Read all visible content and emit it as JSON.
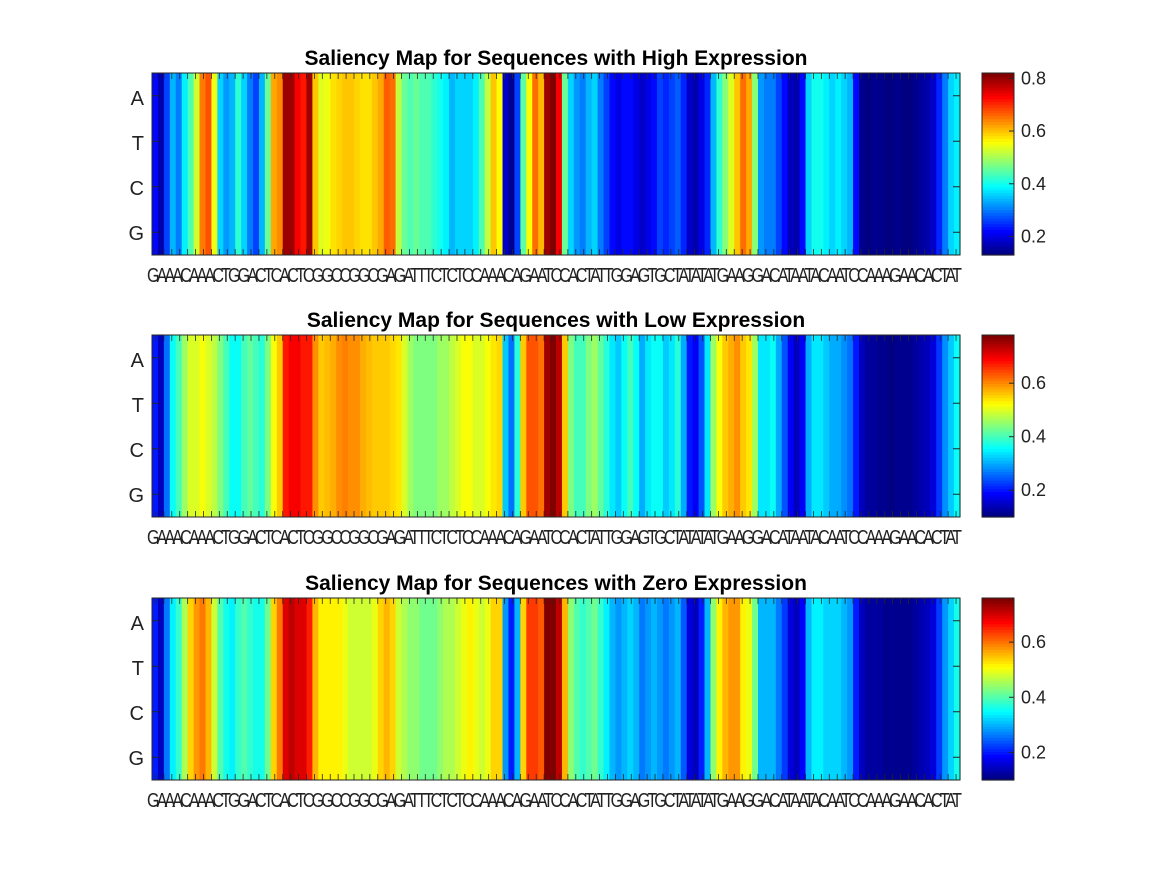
{
  "figure": {
    "background": "#ffffff",
    "colormap": "jet"
  },
  "chart_data": [
    {
      "type": "heatmap",
      "title": "Saliency Map for Sequences with High Expression",
      "rows": [
        "A",
        "T",
        "C",
        "G"
      ],
      "sequence_label": "GAAACAAACTGGACTCACTCGGCCGGCGAGATTTCTCTCCAAACAGAATCCACTATTGGAGTGCTATATATGAAGGACATAATACAATCCAAAGAACACTAT",
      "cbar_ticks": [
        0.2,
        0.4,
        0.6,
        0.8
      ],
      "clim": [
        0.13,
        0.82
      ],
      "values": [
        0.22,
        0.16,
        0.26,
        0.34,
        0.3,
        0.38,
        0.44,
        0.53,
        0.65,
        0.68,
        0.55,
        0.36,
        0.32,
        0.34,
        0.42,
        0.36,
        0.3,
        0.26,
        0.34,
        0.46,
        0.62,
        0.64,
        0.8,
        0.8,
        0.74,
        0.72,
        0.8,
        0.6,
        0.54,
        0.55,
        0.58,
        0.59,
        0.6,
        0.6,
        0.59,
        0.58,
        0.58,
        0.6,
        0.62,
        0.67,
        0.66,
        0.52,
        0.46,
        0.44,
        0.46,
        0.44,
        0.44,
        0.42,
        0.4,
        0.38,
        0.34,
        0.36,
        0.36,
        0.36,
        0.38,
        0.44,
        0.52,
        0.6,
        0.56,
        0.18,
        0.14,
        0.26,
        0.45,
        0.56,
        0.66,
        0.61,
        0.8,
        0.82,
        0.74,
        0.46,
        0.36,
        0.32,
        0.3,
        0.34,
        0.36,
        0.3,
        0.26,
        0.22,
        0.2,
        0.22,
        0.22,
        0.2,
        0.18,
        0.2,
        0.22,
        0.26,
        0.24,
        0.26,
        0.28,
        0.24,
        0.18,
        0.16,
        0.2,
        0.24,
        0.34,
        0.42,
        0.48,
        0.54,
        0.6,
        0.66,
        0.62,
        0.48,
        0.32,
        0.3,
        0.3,
        0.26,
        0.22,
        0.17,
        0.16,
        0.22,
        0.36,
        0.4,
        0.4,
        0.38,
        0.36,
        0.38,
        0.36,
        0.34,
        0.22,
        0.14,
        0.13,
        0.14,
        0.14,
        0.13,
        0.13,
        0.14,
        0.13,
        0.13,
        0.14,
        0.15,
        0.16,
        0.18,
        0.24,
        0.3,
        0.36,
        0.38
      ]
    },
    {
      "type": "heatmap",
      "title": "Saliency Map for Sequences with Low Expression",
      "rows": [
        "A",
        "T",
        "C",
        "G"
      ],
      "sequence_label": "GAAACAAACTGGACTCACTCGGCCGGCGAGATTTCTCTCCAAACAGAATCCACTATTGGAGTGCTATATATGAAGGACATAATACAATCCAAAGAACACTAT",
      "cbar_ticks": [
        0.2,
        0.4,
        0.6
      ],
      "clim": [
        0.1,
        0.78
      ],
      "values": [
        0.2,
        0.14,
        0.26,
        0.36,
        0.4,
        0.46,
        0.5,
        0.5,
        0.52,
        0.5,
        0.48,
        0.44,
        0.4,
        0.36,
        0.36,
        0.4,
        0.42,
        0.4,
        0.38,
        0.44,
        0.52,
        0.56,
        0.68,
        0.7,
        0.7,
        0.68,
        0.68,
        0.6,
        0.56,
        0.57,
        0.58,
        0.6,
        0.61,
        0.6,
        0.6,
        0.58,
        0.57,
        0.56,
        0.56,
        0.56,
        0.55,
        0.54,
        0.5,
        0.46,
        0.44,
        0.44,
        0.44,
        0.44,
        0.46,
        0.46,
        0.48,
        0.5,
        0.52,
        0.52,
        0.5,
        0.5,
        0.52,
        0.54,
        0.55,
        0.32,
        0.26,
        0.38,
        0.56,
        0.64,
        0.64,
        0.62,
        0.76,
        0.78,
        0.74,
        0.56,
        0.44,
        0.4,
        0.4,
        0.44,
        0.46,
        0.42,
        0.38,
        0.34,
        0.32,
        0.36,
        0.4,
        0.36,
        0.3,
        0.34,
        0.36,
        0.36,
        0.32,
        0.34,
        0.38,
        0.3,
        0.2,
        0.18,
        0.24,
        0.34,
        0.46,
        0.52,
        0.56,
        0.58,
        0.6,
        0.56,
        0.54,
        0.46,
        0.34,
        0.34,
        0.36,
        0.3,
        0.24,
        0.18,
        0.14,
        0.18,
        0.3,
        0.34,
        0.34,
        0.32,
        0.3,
        0.3,
        0.28,
        0.26,
        0.2,
        0.14,
        0.12,
        0.12,
        0.11,
        0.11,
        0.1,
        0.11,
        0.11,
        0.11,
        0.12,
        0.13,
        0.14,
        0.16,
        0.22,
        0.28,
        0.32,
        0.36
      ]
    },
    {
      "type": "heatmap",
      "title": "Saliency Map for Sequences with Zero Expression",
      "rows": [
        "A",
        "T",
        "C",
        "G"
      ],
      "sequence_label": "GAAACAAACTGGACTCACTCGGCCGGCGAGATTTCTCTCCAAACAGAATCCACTATTGGAGTGCTATATATGAAGGACATAATACAATCCAAAGAACACTAT",
      "cbar_ticks": [
        0.2,
        0.4,
        0.6
      ],
      "clim": [
        0.1,
        0.76
      ],
      "values": [
        0.2,
        0.14,
        0.26,
        0.34,
        0.38,
        0.46,
        0.54,
        0.58,
        0.6,
        0.56,
        0.48,
        0.4,
        0.36,
        0.34,
        0.38,
        0.4,
        0.38,
        0.36,
        0.36,
        0.42,
        0.54,
        0.6,
        0.7,
        0.72,
        0.7,
        0.7,
        0.66,
        0.56,
        0.52,
        0.52,
        0.52,
        0.52,
        0.5,
        0.48,
        0.48,
        0.48,
        0.48,
        0.5,
        0.54,
        0.56,
        0.54,
        0.48,
        0.46,
        0.44,
        0.44,
        0.42,
        0.42,
        0.42,
        0.44,
        0.46,
        0.46,
        0.48,
        0.5,
        0.52,
        0.5,
        0.48,
        0.5,
        0.54,
        0.54,
        0.28,
        0.2,
        0.3,
        0.54,
        0.64,
        0.64,
        0.62,
        0.76,
        0.76,
        0.72,
        0.56,
        0.44,
        0.4,
        0.38,
        0.4,
        0.42,
        0.38,
        0.34,
        0.3,
        0.28,
        0.3,
        0.32,
        0.3,
        0.26,
        0.28,
        0.3,
        0.28,
        0.26,
        0.28,
        0.3,
        0.24,
        0.16,
        0.14,
        0.2,
        0.3,
        0.44,
        0.52,
        0.56,
        0.58,
        0.58,
        0.52,
        0.5,
        0.42,
        0.3,
        0.3,
        0.3,
        0.26,
        0.22,
        0.16,
        0.14,
        0.18,
        0.3,
        0.34,
        0.34,
        0.32,
        0.32,
        0.32,
        0.3,
        0.28,
        0.2,
        0.14,
        0.12,
        0.12,
        0.12,
        0.11,
        0.11,
        0.11,
        0.11,
        0.11,
        0.12,
        0.13,
        0.14,
        0.16,
        0.22,
        0.28,
        0.32,
        0.36
      ]
    }
  ]
}
